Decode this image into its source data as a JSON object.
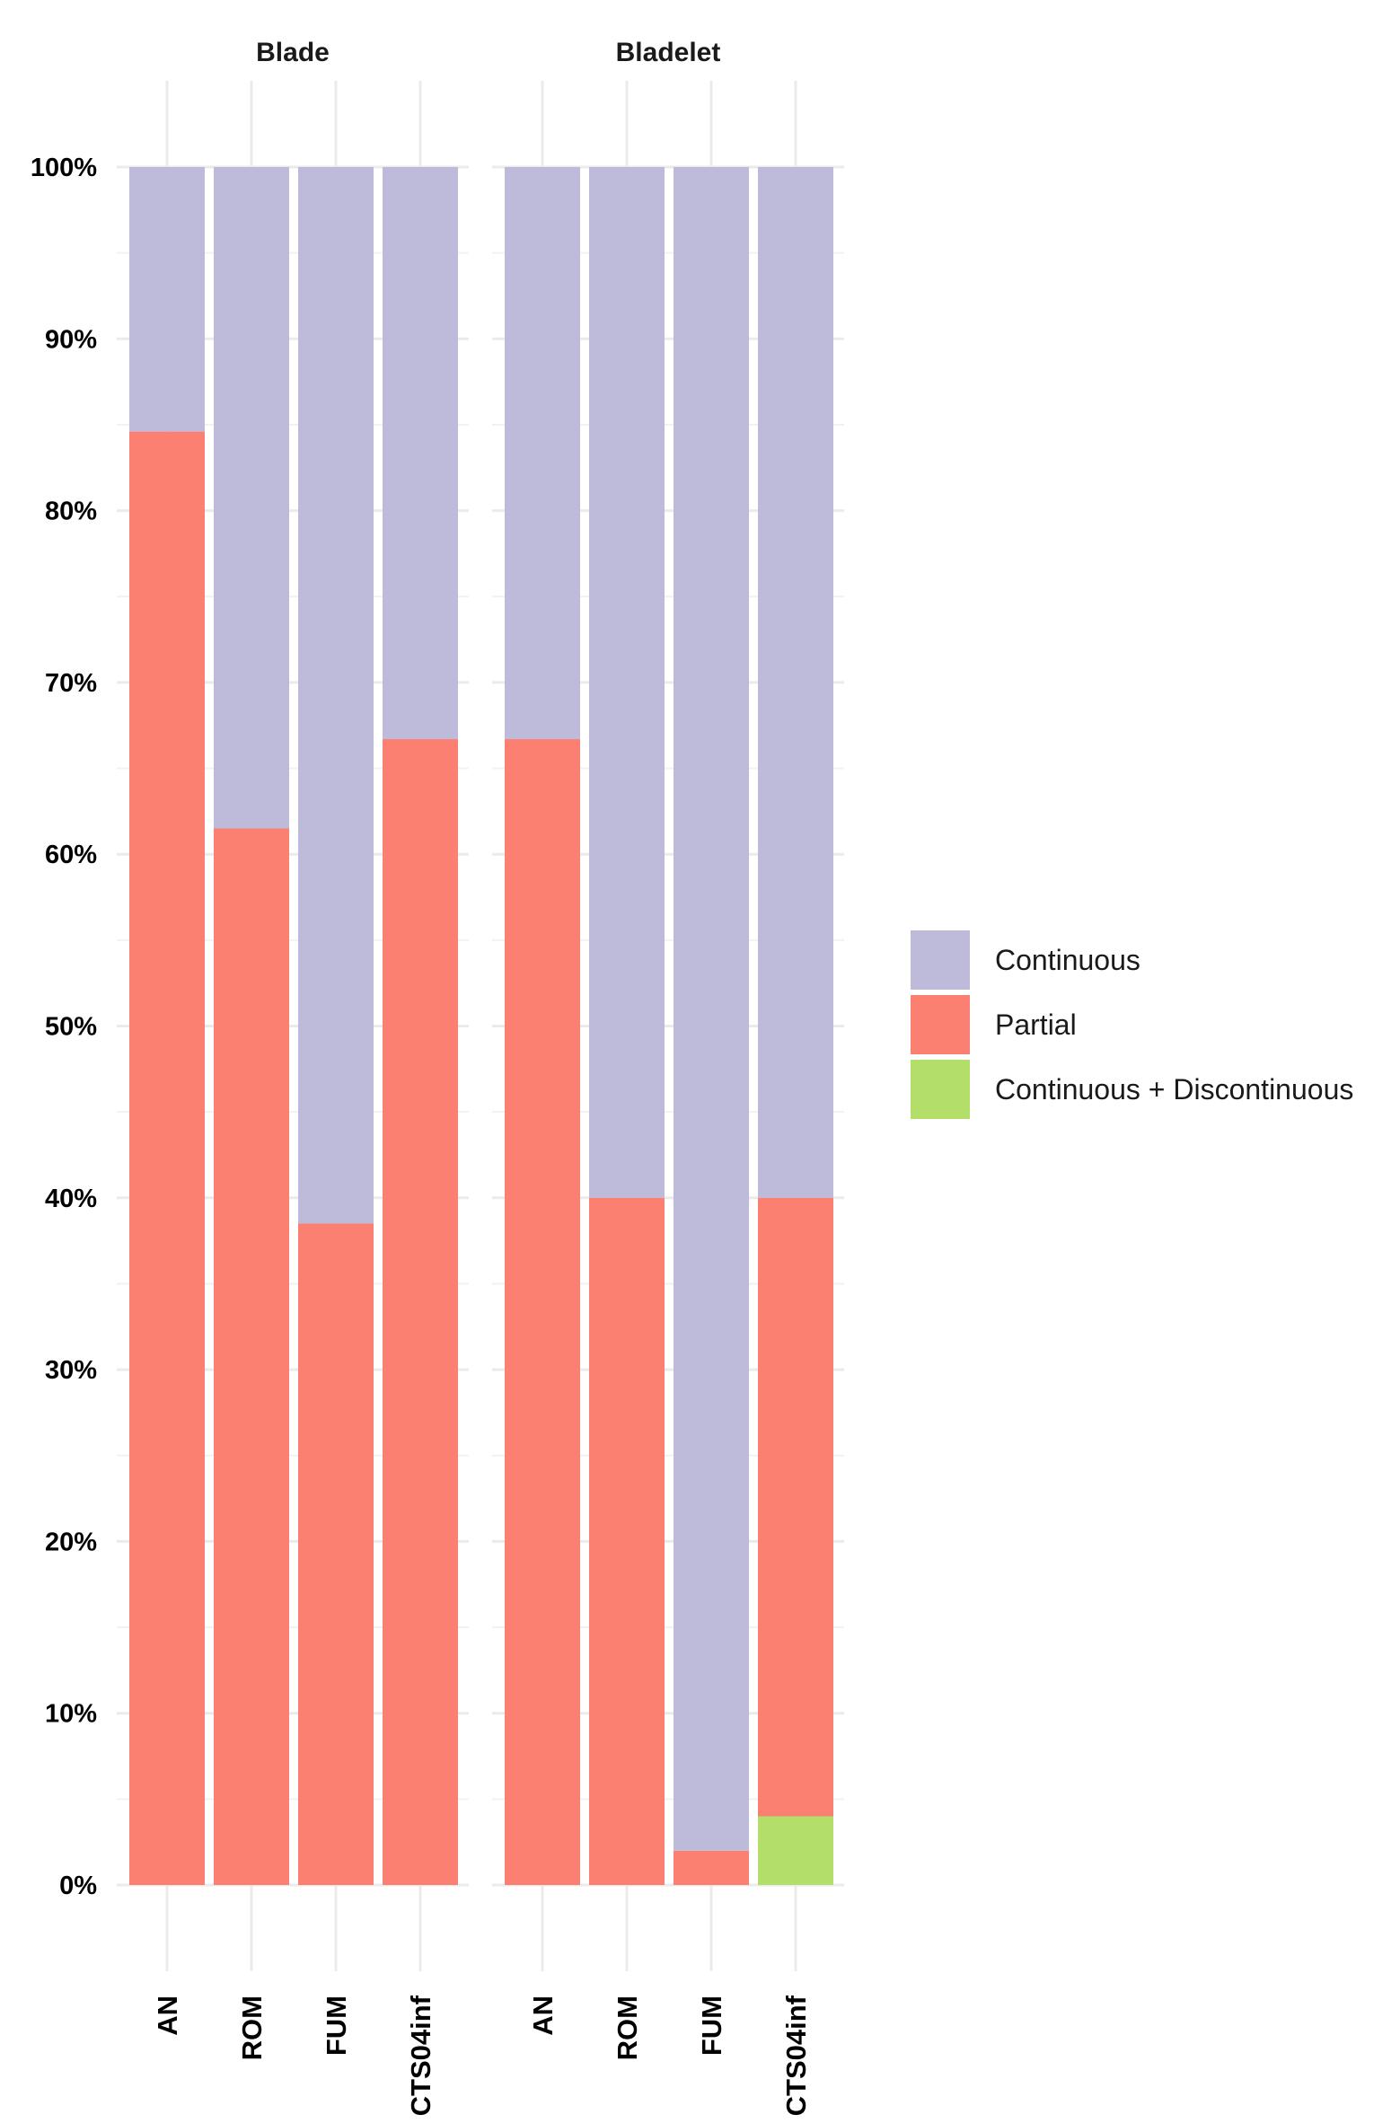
{
  "chart_data": {
    "type": "bar",
    "stacked": true,
    "y_format": "percent",
    "ylim": [
      0,
      1
    ],
    "y_ticks": [
      0,
      0.1,
      0.2,
      0.3,
      0.4,
      0.5,
      0.6,
      0.7,
      0.8,
      0.9,
      1.0
    ],
    "y_tick_labels": [
      "0%",
      "10%",
      "20%",
      "30%",
      "40%",
      "50%",
      "60%",
      "70%",
      "80%",
      "90%",
      "100%"
    ],
    "grid": true,
    "legend_position": "right",
    "legend": [
      {
        "name": "Continuous",
        "color": "#BEBADA"
      },
      {
        "name": "Partial",
        "color": "#FB8072"
      },
      {
        "name": "Continuous + Discontinuous",
        "color": "#B3DE69"
      }
    ],
    "stack_order": [
      "Continuous + Discontinuous",
      "Partial",
      "Continuous"
    ],
    "categories": [
      "AN",
      "ROM",
      "FUM",
      "CTS04inf"
    ],
    "facets": [
      {
        "label": "Blade",
        "series": [
          {
            "name": "Continuous + Discontinuous",
            "values": [
              0,
              0,
              0,
              0
            ]
          },
          {
            "name": "Partial",
            "values": [
              0.846,
              0.615,
              0.385,
              0.667
            ]
          },
          {
            "name": "Continuous",
            "values": [
              0.154,
              0.385,
              0.615,
              0.333
            ]
          }
        ]
      },
      {
        "label": "Bladelet",
        "series": [
          {
            "name": "Continuous + Discontinuous",
            "values": [
              0,
              0,
              0,
              0.04
            ]
          },
          {
            "name": "Partial",
            "values": [
              0.667,
              0.4,
              0.02,
              0.36
            ]
          },
          {
            "name": "Continuous",
            "values": [
              0.333,
              0.6,
              0.98,
              0.6
            ]
          }
        ]
      }
    ]
  }
}
